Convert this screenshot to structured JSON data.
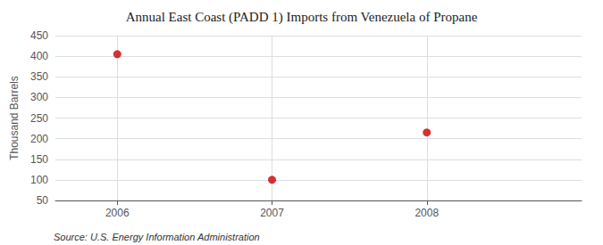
{
  "chart_data": {
    "type": "scatter",
    "title": "Annual East Coast (PADD 1) Imports from Venezuela of Propane",
    "ylabel": "Thousand Barrels",
    "annotations": [
      "Source: U.S. Energy Information Administration"
    ],
    "x": [
      2006,
      2007,
      2008
    ],
    "values": [
      405,
      100,
      215
    ],
    "color": "#cc0000",
    "xlim": [
      2005.6,
      2009.0
    ],
    "ylim": [
      50,
      450
    ],
    "xticks": [
      2006,
      2007,
      2008
    ],
    "yticks": [
      50,
      100,
      150,
      200,
      250,
      300,
      350,
      400,
      450
    ],
    "grid": true
  }
}
